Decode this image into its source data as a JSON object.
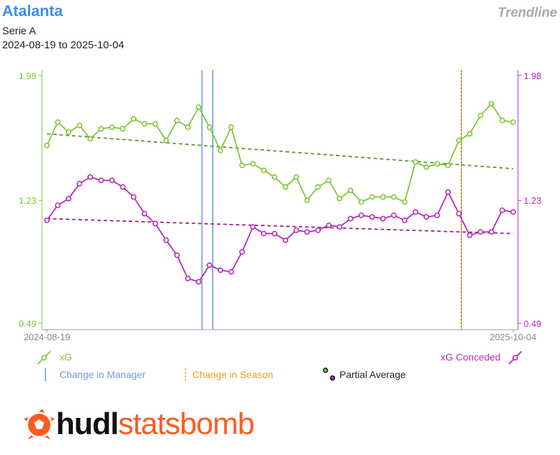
{
  "header": {
    "team": "Atalanta",
    "competition": "Serie A",
    "date_range": "2024-08-19 to 2025-10-04",
    "brand_tag": "Trendline"
  },
  "colors": {
    "xg": "#7dc738",
    "xg_trend": "#5a9a2a",
    "xga": "#b828b8",
    "xga_trend": "#9a2090",
    "manager": "#6e9ae8",
    "season": "#f0a020",
    "logo_orange": "#ff5a1f"
  },
  "legend": {
    "xg": "xG",
    "xga": "xG Conceded",
    "manager": "Change in Manager",
    "season": "Change in Season",
    "partial": "Partial Average"
  },
  "logo": {
    "hudl": "hudl",
    "statsbomb": "statsbomb",
    "icon": "statsbomb-ball-icon"
  },
  "chart_data": {
    "type": "line",
    "x_labels": [
      "2024-08-19",
      "2025-10-04"
    ],
    "left_axis": {
      "ticks": [
        "1.98",
        "1.23",
        "0.49"
      ],
      "range": [
        0.49,
        1.98
      ]
    },
    "right_axis": {
      "ticks": [
        "1.98",
        "1.23",
        "0.49"
      ],
      "range": [
        0.49,
        1.98
      ]
    },
    "grid": false,
    "series": [
      {
        "name": "xG",
        "values": [
          1.56,
          1.7,
          1.64,
          1.68,
          1.6,
          1.66,
          1.67,
          1.66,
          1.72,
          1.69,
          1.69,
          1.59,
          1.71,
          1.67,
          1.79,
          1.67,
          1.53,
          1.67,
          1.44,
          1.45,
          1.41,
          1.37,
          1.31,
          1.37,
          1.23,
          1.31,
          1.35,
          1.24,
          1.29,
          1.22,
          1.25,
          1.25,
          1.25,
          1.22,
          1.46,
          1.43,
          1.45,
          1.44,
          1.59,
          1.63,
          1.74,
          1.81,
          1.71,
          1.7
        ],
        "trend": [
          1.63,
          1.42
        ]
      },
      {
        "name": "xG Conceded",
        "values": [
          1.11,
          1.2,
          1.24,
          1.33,
          1.37,
          1.35,
          1.35,
          1.31,
          1.25,
          1.15,
          1.09,
          0.99,
          0.9,
          0.76,
          0.74,
          0.84,
          0.81,
          0.8,
          0.92,
          1.07,
          1.03,
          1.03,
          0.99,
          1.05,
          1.04,
          1.05,
          1.08,
          1.07,
          1.12,
          1.14,
          1.13,
          1.12,
          1.14,
          1.11,
          1.16,
          1.13,
          1.14,
          1.28,
          1.15,
          1.02,
          1.04,
          1.04,
          1.17,
          1.16
        ],
        "trend": [
          1.12,
          1.03
        ]
      }
    ],
    "markers": {
      "manager_changes": [
        14.3,
        15.3
      ],
      "season_changes": [
        38.2
      ]
    }
  }
}
